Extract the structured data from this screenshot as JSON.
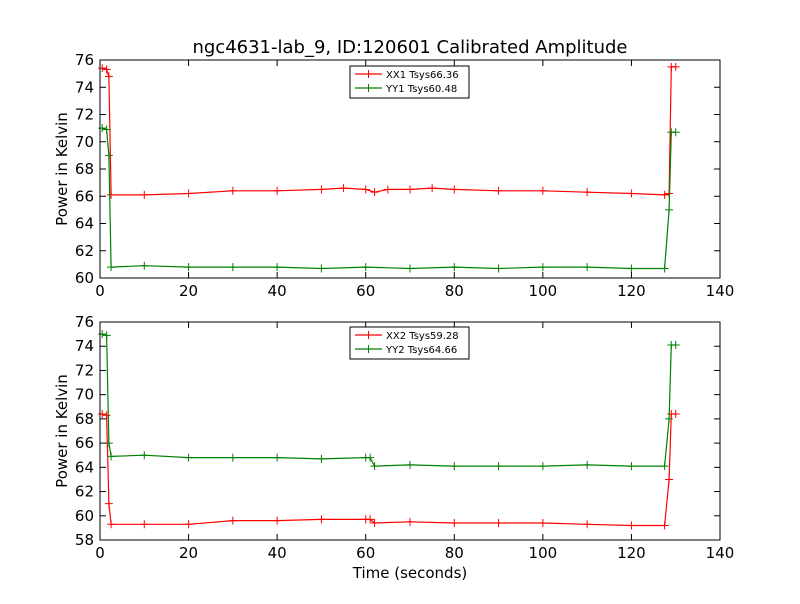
{
  "chart_data": [
    {
      "type": "line",
      "title": "ngc4631-lab_9, ID:120601 Calibrated Amplitude",
      "xlabel": "",
      "ylabel": "Power in Kelvin",
      "xlim": [
        0,
        140
      ],
      "ylim": [
        60,
        76
      ],
      "xticks": [
        "0",
        "20",
        "40",
        "60",
        "80",
        "100",
        "120",
        "140"
      ],
      "yticks": [
        "60",
        "62",
        "64",
        "66",
        "68",
        "70",
        "72",
        "74",
        "76"
      ],
      "grid": false,
      "legend_position": "top-center",
      "series": [
        {
          "name": "XX1 Tsys66.36",
          "color": "#ff0000",
          "x": [
            0.5,
            1.5,
            2.0,
            2.5,
            10,
            20,
            30,
            40,
            50,
            55,
            60,
            62,
            65,
            70,
            75,
            80,
            90,
            100,
            110,
            120,
            127.5,
            128.5,
            129,
            130
          ],
          "y": [
            75.4,
            75.3,
            74.8,
            66.1,
            66.1,
            66.2,
            66.4,
            66.4,
            66.5,
            66.6,
            66.5,
            66.3,
            66.5,
            66.5,
            66.6,
            66.5,
            66.4,
            66.4,
            66.3,
            66.2,
            66.1,
            66.2,
            75.5,
            75.5
          ]
        },
        {
          "name": "YY1 Tsys60.48",
          "color": "#008000",
          "x": [
            0.5,
            1.5,
            2.0,
            2.5,
            10,
            20,
            30,
            40,
            50,
            60,
            70,
            80,
            90,
            100,
            110,
            120,
            127.5,
            128.5,
            129,
            130
          ],
          "y": [
            71.0,
            70.9,
            69.0,
            60.8,
            60.9,
            60.8,
            60.8,
            60.8,
            60.7,
            60.8,
            60.7,
            60.8,
            60.7,
            60.8,
            60.8,
            60.7,
            60.7,
            65.0,
            70.7,
            70.7
          ]
        }
      ]
    },
    {
      "type": "line",
      "title": "",
      "xlabel": "Time (seconds)",
      "ylabel": "Power in Kelvin",
      "xlim": [
        0,
        140
      ],
      "ylim": [
        58,
        76
      ],
      "xticks": [
        "0",
        "20",
        "40",
        "60",
        "80",
        "100",
        "120",
        "140"
      ],
      "yticks": [
        "58",
        "60",
        "62",
        "64",
        "66",
        "68",
        "70",
        "72",
        "74",
        "76"
      ],
      "grid": false,
      "legend_position": "top-center",
      "series": [
        {
          "name": "XX2 Tsys59.28",
          "color": "#ff0000",
          "x": [
            0.5,
            1.5,
            2.0,
            2.5,
            10,
            20,
            30,
            40,
            50,
            60,
            61,
            62,
            70,
            80,
            90,
            100,
            110,
            120,
            127.5,
            128.5,
            129,
            130
          ],
          "y": [
            68.4,
            68.3,
            61.0,
            59.3,
            59.3,
            59.3,
            59.6,
            59.6,
            59.7,
            59.7,
            59.7,
            59.4,
            59.5,
            59.4,
            59.4,
            59.4,
            59.3,
            59.2,
            59.2,
            63.0,
            68.4,
            68.4
          ]
        },
        {
          "name": "YY2 Tsys64.66",
          "color": "#008000",
          "x": [
            0.5,
            1.5,
            2.0,
            2.5,
            10,
            20,
            30,
            40,
            50,
            60,
            61,
            62,
            70,
            80,
            90,
            100,
            110,
            120,
            127.5,
            128.5,
            129,
            130
          ],
          "y": [
            75.0,
            74.9,
            66.0,
            64.9,
            65.0,
            64.8,
            64.8,
            64.8,
            64.7,
            64.8,
            64.8,
            64.1,
            64.2,
            64.1,
            64.1,
            64.1,
            64.2,
            64.1,
            64.1,
            68.0,
            74.1,
            74.1
          ]
        }
      ]
    }
  ]
}
